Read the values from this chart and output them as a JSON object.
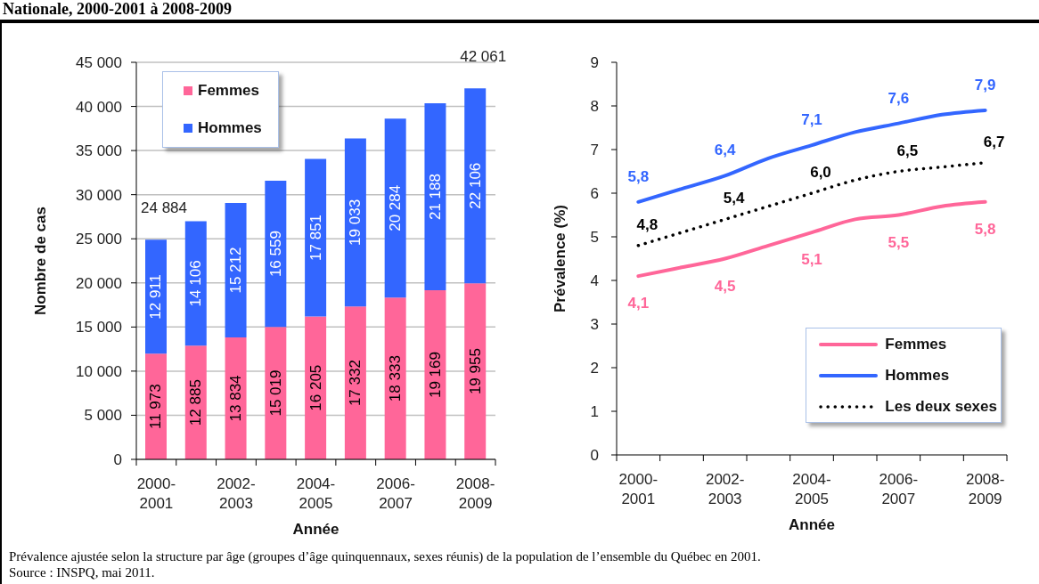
{
  "chart_data": [
    {
      "type": "bar",
      "title": "Nationale, 2000-2001 à 2008-2009",
      "stacked": true,
      "categories": [
        "2000-2001",
        null,
        "2002-2003",
        null,
        "2004-2005",
        null,
        "2006-2007",
        null,
        "2008-2009"
      ],
      "series": [
        {
          "name": "Femmes",
          "color": "#ff6699",
          "values": [
            11973,
            12885,
            13834,
            15019,
            16205,
            17332,
            18333,
            19169,
            19955
          ],
          "value_labels": [
            "11 973",
            "12 885",
            "13 834",
            "15 019",
            "16 205",
            "17 332",
            "18 333",
            "19 169",
            "19 955"
          ]
        },
        {
          "name": "Hommes",
          "color": "#3366ff",
          "values": [
            12911,
            14106,
            15212,
            16559,
            17851,
            19033,
            20284,
            21188,
            22106
          ],
          "value_labels": [
            "12 911",
            "14 106",
            "15 212",
            "16 559",
            "17 851",
            "19 033",
            "20 284",
            "21 188",
            "22 106"
          ]
        }
      ],
      "totals": [
        "24 884",
        null,
        null,
        null,
        null,
        null,
        null,
        null,
        "42 061"
      ],
      "ylim": [
        0,
        45000
      ],
      "yticks": [
        0,
        {
          "value": 5000,
          "label": "5 000"
        },
        {
          "value": 10000,
          "label": "10 000"
        },
        {
          "value": 15000,
          "label": "15 000"
        },
        {
          "value": 20000,
          "label": "20 000"
        },
        {
          "value": 25000,
          "label": "25 000"
        },
        {
          "value": 30000,
          "label": "30 000"
        },
        {
          "value": 35000,
          "label": "35 000"
        },
        {
          "value": 40000,
          "label": "40 000"
        },
        {
          "value": 45000,
          "label": "45 000"
        }
      ],
      "xlabel": "Année",
      "ylabel": "Nombre de cas",
      "grid": "y",
      "legend": "top left"
    },
    {
      "type": "line",
      "categories": [
        "2000-2001",
        null,
        "2002-2003",
        null,
        "2004-2005",
        null,
        "2006-2007",
        null,
        "2008-2009"
      ],
      "series": [
        {
          "name": "Femmes",
          "color": "#ff6699",
          "values": [
            4.1,
            4.3,
            4.5,
            4.8,
            5.1,
            5.4,
            5.5,
            5.7,
            5.8
          ],
          "value_labels": [
            "4,1",
            null,
            "4,5",
            null,
            "5,1",
            null,
            "5,5",
            null,
            "5,8"
          ]
        },
        {
          "name": "Hommes",
          "color": "#3366ff",
          "values": [
            5.8,
            6.1,
            6.4,
            6.8,
            7.1,
            7.4,
            7.6,
            7.8,
            7.9
          ],
          "value_labels": [
            "5,8",
            null,
            "6,4",
            null,
            "7,1",
            null,
            "7,6",
            null,
            "7,9"
          ]
        },
        {
          "name": "Les deux sexes",
          "color": "#000000",
          "line_style": "dotted",
          "values": [
            4.8,
            5.1,
            5.4,
            5.7,
            6.0,
            6.3,
            6.5,
            6.6,
            6.7
          ],
          "value_labels": [
            "4,8",
            null,
            "5,4",
            null,
            "6,0",
            null,
            "6,5",
            null,
            "6,7"
          ]
        }
      ],
      "ylim": [
        0,
        9
      ],
      "yticks": [
        0,
        1,
        2,
        3,
        4,
        5,
        6,
        7,
        8,
        9
      ],
      "xlabel": "Année",
      "ylabel": "Prévalence (%)",
      "legend": "bottom right",
      "annotations": [
        "Prévalence ajustée selon la structure par âge (groupes d’âge quinquennaux, sexes réunis) de la population de l’ensemble du Québec en 2001.",
        "Source : INSPQ, mai 2011."
      ]
    }
  ]
}
